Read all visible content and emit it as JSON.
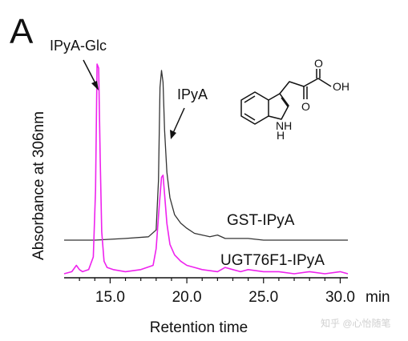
{
  "figure": {
    "panel_label": "A",
    "watermark": "知乎 @心怡随笔",
    "molecule_atoms": {
      "oh": "OH",
      "o": "O",
      "nh": "NH",
      "h": "H"
    }
  },
  "chart_data": {
    "type": "line",
    "xlabel": "Retention time",
    "ylabel": "Absorbance at 306nm",
    "x_unit": "min",
    "xlim": [
      12.0,
      30.5
    ],
    "xticks": [
      15.0,
      20.0,
      25.0,
      30.0
    ],
    "xtick_labels": [
      "15.0",
      "20.0",
      "25.0",
      "30.0"
    ],
    "grid": false,
    "series": [
      {
        "name": "GST-IPyA",
        "color": "#333333",
        "baseline": 0.0,
        "x": [
          12.0,
          14.0,
          16.0,
          17.5,
          18.0,
          18.15,
          18.25,
          18.35,
          18.45,
          18.55,
          18.7,
          18.9,
          19.2,
          19.6,
          20.0,
          20.5,
          21.0,
          21.5,
          22.0,
          22.5,
          23.0,
          24.0,
          25.0,
          26.0,
          27.0,
          28.0,
          29.0,
          30.0,
          30.5
        ],
        "y": [
          0.0,
          0.0,
          0.01,
          0.02,
          0.06,
          0.35,
          0.9,
          1.0,
          0.93,
          0.65,
          0.4,
          0.25,
          0.15,
          0.1,
          0.07,
          0.04,
          0.03,
          0.02,
          0.03,
          0.01,
          0.01,
          0.01,
          0.0,
          0.0,
          0.0,
          0.0,
          0.0,
          0.0,
          0.0
        ]
      },
      {
        "name": "UGT76F1-IPyA",
        "color": "#ee22ee",
        "baseline": 0.0,
        "x": [
          12.0,
          12.5,
          12.8,
          13.0,
          13.2,
          13.6,
          13.9,
          14.05,
          14.15,
          14.25,
          14.35,
          14.45,
          14.6,
          14.8,
          15.2,
          16.0,
          17.0,
          17.8,
          18.0,
          18.2,
          18.35,
          18.45,
          18.55,
          18.7,
          18.9,
          19.2,
          19.6,
          20.0,
          20.5,
          21.0,
          22.0,
          22.5,
          23.0,
          23.5,
          24.0,
          25.0,
          26.0,
          27.0,
          28.0,
          29.0,
          30.0,
          30.5
        ],
        "y": [
          0.0,
          0.01,
          0.04,
          0.02,
          0.01,
          0.02,
          0.08,
          0.4,
          1.0,
          0.98,
          0.55,
          0.2,
          0.06,
          0.03,
          0.02,
          0.01,
          0.02,
          0.04,
          0.12,
          0.32,
          0.46,
          0.47,
          0.38,
          0.24,
          0.14,
          0.09,
          0.06,
          0.04,
          0.03,
          0.02,
          0.01,
          0.03,
          0.02,
          0.01,
          0.02,
          0.01,
          0.01,
          0.0,
          0.01,
          0.0,
          0.01,
          0.0
        ]
      }
    ],
    "annotations": [
      {
        "text": "IPyA-Glc",
        "x": 14.15
      },
      {
        "text": "IPyA",
        "x": 18.5
      }
    ]
  }
}
